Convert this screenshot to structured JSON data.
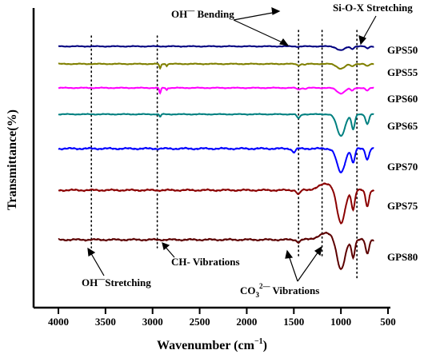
{
  "chart_data": {
    "type": "line",
    "xlabel": "Wavenumber (cm",
    "xlabel_sup": "−1",
    "xlabel_end": ")",
    "ylabel": "Transmittance(%)",
    "xlim": [
      4000,
      500
    ],
    "x_reversed": true,
    "xticks": [
      4000,
      3500,
      3000,
      2500,
      2000,
      1500,
      1000,
      500
    ],
    "grid": false,
    "series": [
      {
        "name": "GPS50",
        "color": "#000080",
        "offset": 0,
        "amp": 0.3,
        "bands": [
          [
            1450,
            0.08,
            25
          ],
          [
            1000,
            0.9,
            60
          ],
          [
            880,
            0.55,
            25
          ],
          [
            720,
            0.45,
            25
          ]
        ]
      },
      {
        "name": "GPS55",
        "color": "#808000",
        "offset": 1,
        "amp": 0.36,
        "bands": [
          [
            2920,
            0.9,
            12
          ],
          [
            2850,
            0.35,
            10
          ],
          [
            1450,
            0.25,
            25
          ],
          [
            1380,
            0.15,
            20
          ],
          [
            1000,
            0.9,
            60
          ],
          [
            880,
            0.45,
            25
          ],
          [
            720,
            0.45,
            25
          ]
        ]
      },
      {
        "name": "GPS60",
        "color": "#ff00ff",
        "offset": 2,
        "amp": 0.42,
        "bands": [
          [
            2920,
            0.9,
            12
          ],
          [
            2850,
            0.35,
            10
          ],
          [
            1450,
            0.25,
            25
          ],
          [
            1380,
            0.15,
            20
          ],
          [
            1000,
            0.9,
            60
          ],
          [
            880,
            0.45,
            25
          ],
          [
            720,
            0.45,
            25
          ]
        ]
      },
      {
        "name": "GPS65",
        "color": "#008080",
        "offset": 3,
        "amp": 0.9,
        "bands": [
          [
            2920,
            0.12,
            12
          ],
          [
            1450,
            0.18,
            25
          ],
          [
            1000,
            1.0,
            60
          ],
          [
            870,
            0.7,
            25
          ],
          [
            720,
            0.45,
            25
          ]
        ]
      },
      {
        "name": "GPS70",
        "color": "#0000ff",
        "offset": 4,
        "amp": 1.0,
        "bands": [
          [
            1500,
            0.15,
            25
          ],
          [
            1000,
            1.0,
            60
          ],
          [
            870,
            0.6,
            25
          ],
          [
            720,
            0.45,
            25
          ]
        ]
      },
      {
        "name": "GPS75",
        "color": "#8b0000",
        "offset": 5,
        "amp": 1.45,
        "bands": [
          [
            1450,
            0.12,
            25
          ],
          [
            1000,
            1.0,
            60
          ],
          [
            870,
            0.55,
            25
          ],
          [
            720,
            0.45,
            25
          ]
        ]
      },
      {
        "name": "GPS80",
        "color": "#5c0000",
        "offset": 6,
        "amp": 1.3,
        "bands": [
          [
            1450,
            0.08,
            25
          ],
          [
            1000,
            1.0,
            60
          ],
          [
            870,
            0.55,
            25
          ],
          [
            720,
            0.45,
            25
          ]
        ]
      }
    ],
    "markers": [
      3650,
      2950,
      1450,
      1200,
      830
    ],
    "annotations": {
      "oh_bending": {
        "text": "OH",
        "sup": "—",
        "text2": " Bending"
      },
      "sioxx": {
        "text": "Si-O-X Stretching"
      },
      "oh_stretching": {
        "text": "OH",
        "sup": "—",
        "text2": "Stretching"
      },
      "ch": {
        "text": "CH- Vibrations"
      },
      "co3": {
        "text": "CO",
        "sub": "3",
        "sup": "2—",
        "text2": " Vibrations"
      }
    }
  }
}
